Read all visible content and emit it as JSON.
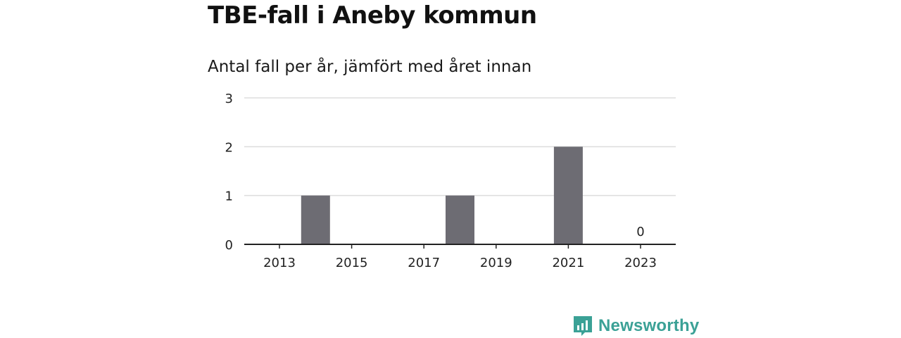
{
  "header": {
    "title": "TBE-fall i Aneby kommun",
    "subtitle": "Antal fall per år, jämfört med året innan"
  },
  "brand": {
    "name": "Newsworthy",
    "color": "#3ba196",
    "icon": "bar-chart-speech-bubble-icon"
  },
  "colors": {
    "bar": "#6d6c73",
    "grid": "#dddddd",
    "axis": "#222222"
  },
  "chart_data": {
    "type": "bar",
    "title": "TBE-fall i Aneby kommun",
    "subtitle": "Antal fall per år, jämfört med året innan",
    "xlabel": "",
    "ylabel": "",
    "categories": [
      2013,
      2014,
      2015,
      2016,
      2017,
      2018,
      2019,
      2020,
      2021,
      2022,
      2023
    ],
    "values": [
      0,
      1,
      0,
      0,
      0,
      1,
      0,
      0,
      2,
      0,
      0
    ],
    "xticks": [
      "2013",
      "2015",
      "2017",
      "2019",
      "2021",
      "2023"
    ],
    "yticks": [
      "0",
      "1",
      "2",
      "3"
    ],
    "ylim": [
      0,
      3
    ],
    "grid": true,
    "legend": "none",
    "annotations": [
      {
        "x": 2023,
        "text": "0"
      }
    ]
  }
}
